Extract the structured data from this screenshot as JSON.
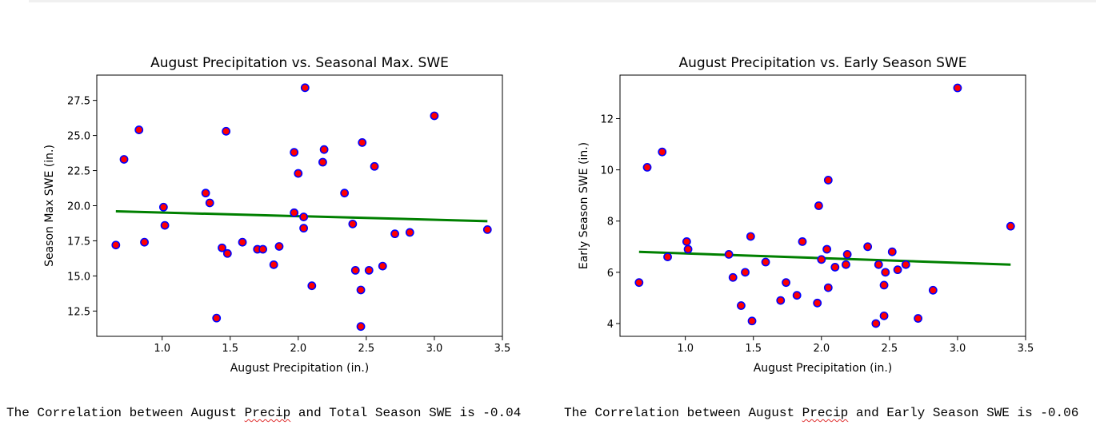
{
  "chart_data": [
    {
      "type": "scatter",
      "title": "August Precipitation vs. Seasonal Max. SWE",
      "xlabel": "August Precipitation (in.)",
      "ylabel": "Season Max SWE (in.)",
      "xlim": [
        0.52,
        3.5
      ],
      "ylim": [
        10.7,
        29.3
      ],
      "xticks": [
        "1.0",
        "1.5",
        "2.0",
        "2.5",
        "3.0",
        "3.5"
      ],
      "xtick_values": [
        1.0,
        1.5,
        2.0,
        2.5,
        3.0,
        3.5
      ],
      "yticks": [
        "12.5",
        "15.0",
        "17.5",
        "20.0",
        "22.5",
        "25.0",
        "27.5"
      ],
      "ytick_values": [
        12.5,
        15.0,
        17.5,
        20.0,
        22.5,
        25.0,
        27.5
      ],
      "points": [
        [
          0.66,
          17.2
        ],
        [
          0.72,
          23.3
        ],
        [
          0.83,
          25.4
        ],
        [
          0.87,
          17.4
        ],
        [
          1.01,
          19.9
        ],
        [
          1.02,
          18.6
        ],
        [
          1.32,
          20.9
        ],
        [
          1.35,
          20.2
        ],
        [
          1.4,
          12.0
        ],
        [
          1.44,
          17.0
        ],
        [
          1.47,
          25.3
        ],
        [
          1.48,
          16.6
        ],
        [
          1.59,
          17.4
        ],
        [
          1.7,
          16.9
        ],
        [
          1.74,
          16.9
        ],
        [
          1.82,
          15.8
        ],
        [
          1.86,
          17.1
        ],
        [
          1.97,
          23.8
        ],
        [
          1.97,
          19.5
        ],
        [
          2.0,
          22.3
        ],
        [
          2.04,
          19.2
        ],
        [
          2.04,
          18.4
        ],
        [
          2.05,
          28.4
        ],
        [
          2.1,
          14.3
        ],
        [
          2.18,
          23.1
        ],
        [
          2.19,
          24.0
        ],
        [
          2.34,
          20.9
        ],
        [
          2.4,
          18.7
        ],
        [
          2.42,
          15.4
        ],
        [
          2.46,
          14.0
        ],
        [
          2.46,
          11.4
        ],
        [
          2.47,
          24.5
        ],
        [
          2.52,
          15.4
        ],
        [
          2.56,
          22.8
        ],
        [
          2.62,
          15.7
        ],
        [
          2.71,
          18.0
        ],
        [
          2.82,
          18.1
        ],
        [
          3.0,
          26.4
        ],
        [
          3.39,
          18.3
        ]
      ],
      "trendline": [
        [
          0.66,
          19.6
        ],
        [
          3.39,
          18.9
        ]
      ],
      "marker_fill": "#ff0000",
      "marker_edge": "#0000ff",
      "line_color": "#008000"
    },
    {
      "type": "scatter",
      "title": "August Precipitation vs. Early Season SWE",
      "xlabel": "August Precipitation (in.)",
      "ylabel": "Early Season SWE (in.)",
      "xlim": [
        0.52,
        3.5
      ],
      "ylim": [
        3.5,
        13.7
      ],
      "xticks": [
        "1.0",
        "1.5",
        "2.0",
        "2.5",
        "3.0",
        "3.5"
      ],
      "xtick_values": [
        1.0,
        1.5,
        2.0,
        2.5,
        3.0,
        3.5
      ],
      "yticks": [
        "4",
        "6",
        "8",
        "10",
        "12"
      ],
      "ytick_values": [
        4,
        6,
        8,
        10,
        12
      ],
      "points": [
        [
          0.66,
          5.6
        ],
        [
          0.72,
          10.1
        ],
        [
          0.83,
          10.7
        ],
        [
          0.87,
          6.6
        ],
        [
          1.01,
          7.2
        ],
        [
          1.02,
          6.9
        ],
        [
          1.32,
          6.7
        ],
        [
          1.35,
          5.8
        ],
        [
          1.41,
          4.7
        ],
        [
          1.44,
          6.0
        ],
        [
          1.48,
          7.4
        ],
        [
          1.49,
          4.1
        ],
        [
          1.59,
          6.4
        ],
        [
          1.7,
          4.9
        ],
        [
          1.74,
          5.6
        ],
        [
          1.82,
          5.1
        ],
        [
          1.86,
          7.2
        ],
        [
          1.97,
          4.8
        ],
        [
          1.98,
          8.6
        ],
        [
          2.0,
          6.5
        ],
        [
          2.04,
          6.9
        ],
        [
          2.05,
          9.6
        ],
        [
          2.05,
          5.4
        ],
        [
          2.1,
          6.2
        ],
        [
          2.18,
          6.3
        ],
        [
          2.19,
          6.7
        ],
        [
          2.34,
          7.0
        ],
        [
          2.4,
          4.0
        ],
        [
          2.42,
          6.3
        ],
        [
          2.46,
          5.5
        ],
        [
          2.46,
          4.3
        ],
        [
          2.47,
          6.0
        ],
        [
          2.52,
          6.8
        ],
        [
          2.56,
          6.1
        ],
        [
          2.62,
          6.3
        ],
        [
          2.71,
          4.2
        ],
        [
          2.82,
          5.3
        ],
        [
          3.0,
          13.2
        ],
        [
          3.39,
          7.8
        ]
      ],
      "trendline": [
        [
          0.66,
          6.8
        ],
        [
          3.39,
          6.3
        ]
      ],
      "marker_fill": "#ff0000",
      "marker_edge": "#0000ff",
      "line_color": "#008000"
    }
  ],
  "output": {
    "left_prefix": "The Correlation between August ",
    "left_word": "Precip",
    "left_suffix": " and Total Season SWE is -0.04",
    "right_prefix": "The Correlation between August ",
    "right_word": "Precip",
    "right_suffix": " and Early Season SWE is -0.06"
  }
}
